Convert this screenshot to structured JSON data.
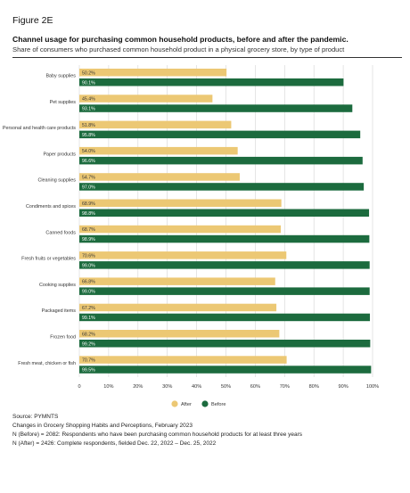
{
  "figure_label": "Figure 2E",
  "title": "Channel usage for purchasing common household products, before and after the pandemic.",
  "subtitle": "Share of consumers who purchased common household product in a physical grocery store, by type of product",
  "colors": {
    "after": "#ecc874",
    "before": "#1c6b3e",
    "grid": "#d4d4d4"
  },
  "chart_data": {
    "type": "bar",
    "orientation": "horizontal",
    "categories": [
      "Baby supplies",
      "Pet supplies",
      "Personal and health care products",
      "Paper products",
      "Cleaning supplies",
      "Condiments and spices",
      "Canned foods",
      "Fresh fruits or vegetables",
      "Cooking supplies",
      "Packaged items",
      "Frozen food",
      "Fresh meat, chicken or fish"
    ],
    "series": [
      {
        "name": "After",
        "color": "#ecc874",
        "values": [
          50.2,
          45.4,
          51.8,
          54.0,
          54.7,
          68.9,
          68.7,
          70.6,
          66.8,
          67.2,
          68.2,
          70.7
        ],
        "labels": [
          "50.2%",
          "45.4%",
          "51.8%",
          "54.0%",
          "54.7%",
          "68.9%",
          "68.7%",
          "70.6%",
          "66.8%",
          "67.2%",
          "68.2%",
          "70.7%"
        ]
      },
      {
        "name": "Before",
        "color": "#1c6b3e",
        "values": [
          90.1,
          93.1,
          95.8,
          96.6,
          97.0,
          98.8,
          98.9,
          99.0,
          99.0,
          99.1,
          99.2,
          99.5
        ],
        "labels": [
          "90.1%",
          "93.1%",
          "95.8%",
          "96.6%",
          "97.0%",
          "98.8%",
          "98.9%",
          "99.0%",
          "99.0%",
          "99.1%",
          "99.2%",
          "99.5%"
        ]
      }
    ],
    "xlim": [
      0,
      100
    ],
    "xticks": [
      "0",
      "10%",
      "20%",
      "30%",
      "40%",
      "50%",
      "60%",
      "70%",
      "80%",
      "90%",
      "100%"
    ],
    "grid": true,
    "legend": "bottom-center"
  },
  "source": [
    "Source: PYMNTS",
    "Changes in Grocery Shopping Habits and Perceptions, February 2023",
    "N (Before) = 2082: Respondents who have been purchasing common household products for at least three years",
    "N (After) = 2426: Complete respondents, fielded Dec. 22, 2022 – Dec. 25, 2022"
  ]
}
